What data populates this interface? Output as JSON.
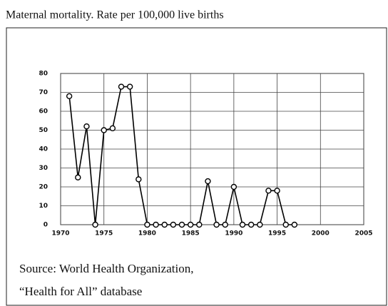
{
  "chart_data": {
    "type": "line",
    "title": "Maternal mortality.  Rate per 100,000 live births",
    "source": [
      "Source:  World Health Organization,",
      "“Health for All” database"
    ],
    "x": [
      1971,
      1972,
      1973,
      1974,
      1975,
      1976,
      1977,
      1978,
      1979,
      1980,
      1981,
      1982,
      1983,
      1984,
      1985,
      1986,
      1987,
      1988,
      1989,
      1990,
      1991,
      1992,
      1993,
      1994,
      1995,
      1996,
      1997
    ],
    "series": [
      {
        "color": "#000000",
        "values": [
          68,
          25,
          52,
          0,
          50,
          51,
          73,
          73,
          24,
          0,
          0,
          0,
          0,
          0,
          0,
          0,
          23,
          0,
          0,
          20,
          0,
          0,
          0,
          18,
          18,
          0,
          0
        ]
      }
    ],
    "xlim": [
      1970,
      2005
    ],
    "xticks": [
      1970,
      1975,
      1980,
      1985,
      1990,
      1995,
      2000,
      2005
    ],
    "ylim": [
      0,
      80
    ],
    "yticks": [
      0,
      10,
      20,
      30,
      40,
      50,
      60,
      70,
      80
    ],
    "grid": true
  }
}
